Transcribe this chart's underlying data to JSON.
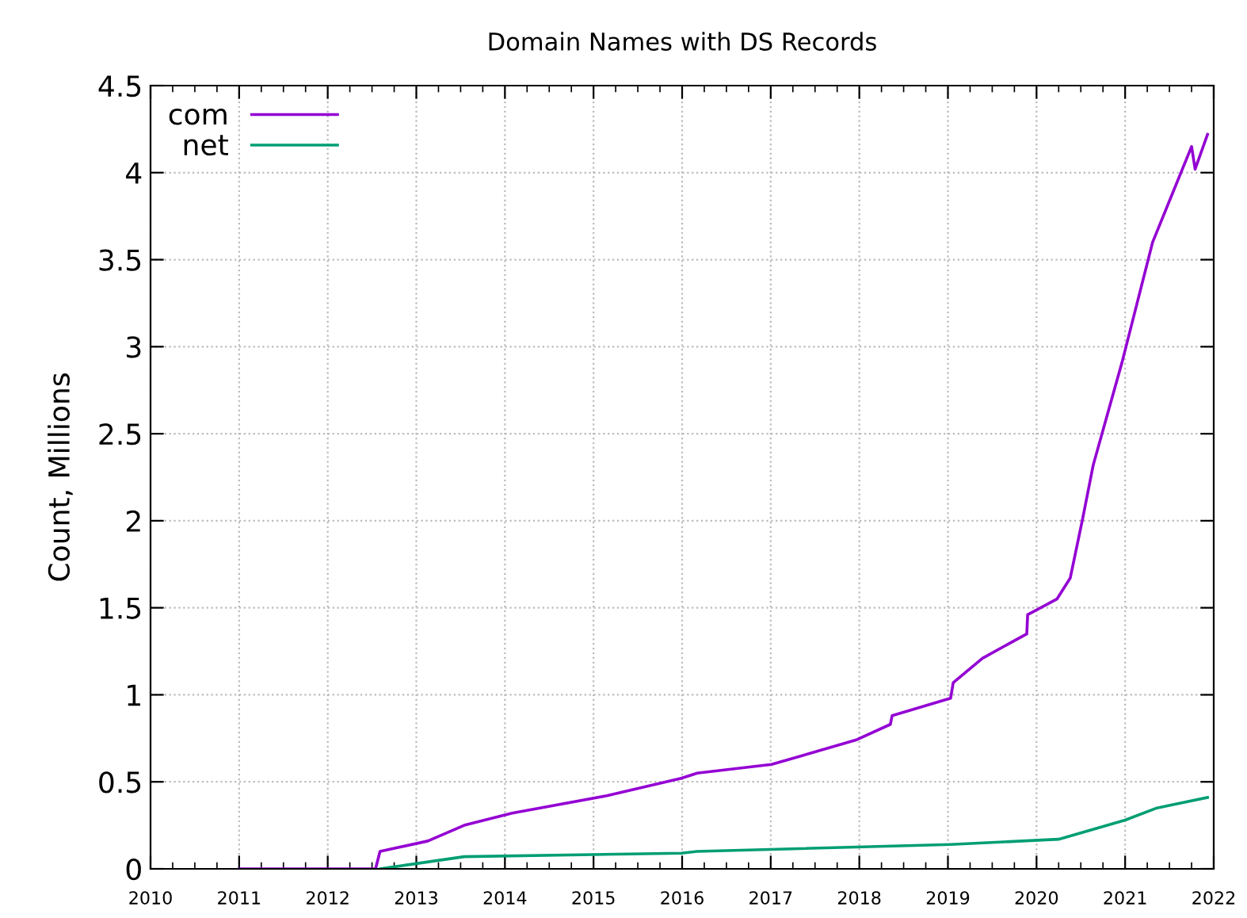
{
  "chart_data": {
    "type": "line",
    "title": "Domain Names with DS Records",
    "ylabel": "Count, Millions",
    "xlim": [
      2010,
      2022
    ],
    "xticks": [
      2010,
      2011,
      2012,
      2013,
      2014,
      2015,
      2016,
      2017,
      2018,
      2019,
      2020,
      2021,
      2022
    ],
    "ylim": [
      0,
      4.5
    ],
    "yticks": [
      0,
      0.5,
      1,
      1.5,
      2,
      2.5,
      3,
      3.5,
      4,
      4.5
    ],
    "grid": true,
    "legend": "top left",
    "marker": "none",
    "line_style": "solid",
    "series": [
      {
        "name": "com",
        "color": "#9400d3",
        "x": [
          2011.0,
          2012.0,
          2012.54,
          2012.59,
          2013.13,
          2013.54,
          2014.08,
          2015.15,
          2015.99,
          2016.17,
          2017.01,
          2017.96,
          2018.35,
          2018.37,
          2019.03,
          2019.06,
          2019.39,
          2019.89,
          2019.9,
          2020.23,
          2020.38,
          2020.52,
          2020.64,
          2020.97,
          2021.31,
          2021.75,
          2021.79,
          2021.93
        ],
        "values": [
          0.0,
          0.0,
          0.0,
          0.1,
          0.16,
          0.25,
          0.32,
          0.42,
          0.52,
          0.55,
          0.6,
          0.74,
          0.83,
          0.88,
          0.98,
          1.07,
          1.21,
          1.35,
          1.46,
          1.55,
          1.67,
          2.01,
          2.32,
          2.92,
          3.6,
          4.15,
          4.02,
          4.22
        ]
      },
      {
        "name": "net",
        "color": "#009e73",
        "x": [
          2012.59,
          2013.54,
          2015.99,
          2016.17,
          2019.03,
          2020.25,
          2021.0,
          2021.36,
          2021.93
        ],
        "values": [
          0.0,
          0.07,
          0.09,
          0.1,
          0.14,
          0.17,
          0.28,
          0.35,
          0.41
        ]
      }
    ]
  }
}
